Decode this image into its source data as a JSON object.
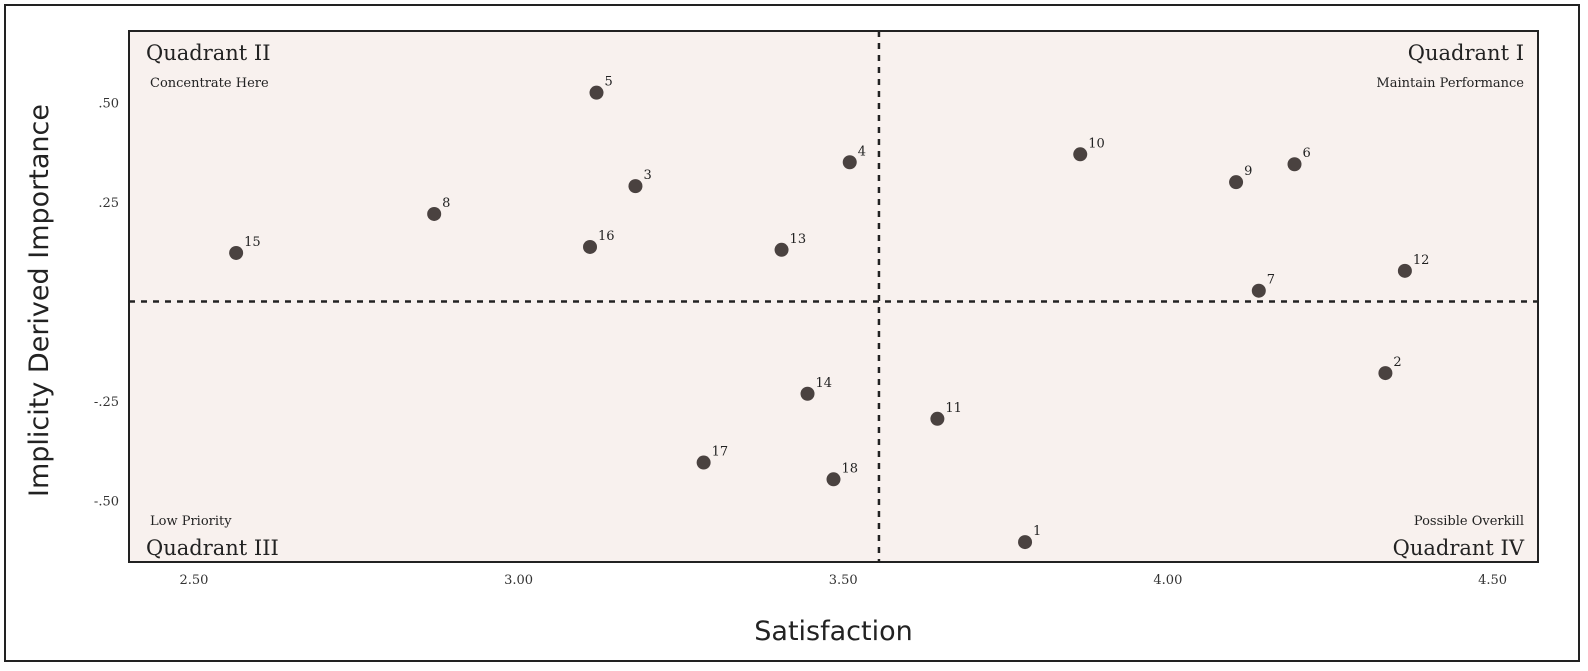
{
  "chart_data": {
    "type": "scatter",
    "title": "",
    "xlabel": "Satisfaction",
    "ylabel": "Implicity Derived Importance",
    "xlim": [
      2.4,
      4.57
    ],
    "ylim": [
      -0.655,
      0.68
    ],
    "x_ticks": [
      {
        "value": 2.5,
        "label": "2.50"
      },
      {
        "value": 3.0,
        "label": "3.00"
      },
      {
        "value": 3.5,
        "label": "3.50"
      },
      {
        "value": 4.0,
        "label": "4.00"
      },
      {
        "value": 4.5,
        "label": "4.50"
      }
    ],
    "y_ticks": [
      {
        "value": 0.5,
        "label": ".50"
      },
      {
        "value": 0.25,
        "label": ".25"
      },
      {
        "value": -0.25,
        "label": "-.25"
      },
      {
        "value": -0.5,
        "label": "-.50"
      }
    ],
    "grid": false,
    "divider_x": 3.555,
    "divider_y": 0.0,
    "quadrants": [
      {
        "id": "q2",
        "title": "Quadrant II",
        "subtitle": "Concentrate Here",
        "corner": "top-left"
      },
      {
        "id": "q1",
        "title": "Quadrant I",
        "subtitle": "Maintain Performance",
        "corner": "top-right"
      },
      {
        "id": "q3",
        "title": "Quadrant III",
        "subtitle": "Low Priority",
        "corner": "bottom-left"
      },
      {
        "id": "q4",
        "title": "Quadrant IV",
        "subtitle": "Possible Overkill",
        "corner": "bottom-right"
      }
    ],
    "points": [
      {
        "label": "1",
        "x": 3.78,
        "y": -0.605
      },
      {
        "label": "2",
        "x": 4.335,
        "y": -0.18
      },
      {
        "label": "3",
        "x": 3.18,
        "y": 0.29
      },
      {
        "label": "4",
        "x": 3.51,
        "y": 0.35
      },
      {
        "label": "5",
        "x": 3.12,
        "y": 0.525
      },
      {
        "label": "6",
        "x": 4.195,
        "y": 0.345
      },
      {
        "label": "7",
        "x": 4.14,
        "y": 0.027
      },
      {
        "label": "8",
        "x": 2.87,
        "y": 0.22
      },
      {
        "label": "9",
        "x": 4.105,
        "y": 0.3
      },
      {
        "label": "10",
        "x": 3.865,
        "y": 0.37
      },
      {
        "label": "11",
        "x": 3.645,
        "y": -0.295
      },
      {
        "label": "12",
        "x": 4.365,
        "y": 0.077
      },
      {
        "label": "13",
        "x": 3.405,
        "y": 0.13
      },
      {
        "label": "14",
        "x": 3.445,
        "y": -0.232
      },
      {
        "label": "15",
        "x": 2.565,
        "y": 0.122
      },
      {
        "label": "16",
        "x": 3.11,
        "y": 0.137
      },
      {
        "label": "17",
        "x": 3.285,
        "y": -0.405
      },
      {
        "label": "18",
        "x": 3.485,
        "y": -0.447
      }
    ],
    "colors": {
      "plot_background": "#f8f1ee",
      "marker": "#4a4240",
      "divider": "#222222",
      "border": "#222222"
    }
  }
}
